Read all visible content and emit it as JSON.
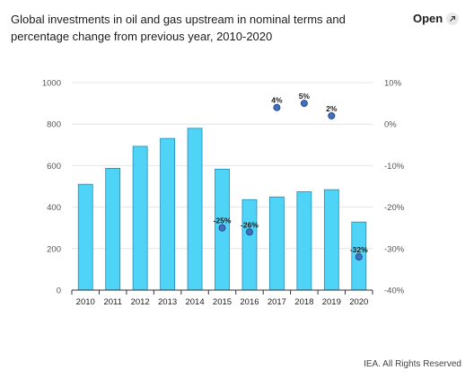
{
  "header": {
    "title": "Global investments in oil and gas upstream in nominal terms and percentage change from previous year, 2010-2020",
    "open_label": "Open",
    "open_icon": "external-link-icon"
  },
  "footer": {
    "credit": "IEA. All Rights Reserved"
  },
  "colors": {
    "bar": "#4fd3f7",
    "bar_stroke": "#1d8fb3",
    "dot": "#3f6fbf",
    "dot_stroke": "#1f3f7f",
    "grid": "#e4e4e4"
  },
  "chart_data": {
    "type": "bar",
    "categories": [
      "2010",
      "2011",
      "2012",
      "2013",
      "2014",
      "2015",
      "2016",
      "2017",
      "2018",
      "2019",
      "2020"
    ],
    "series": [
      {
        "axis": "left",
        "type": "bar",
        "values": [
          510,
          587,
          693,
          731,
          780,
          583,
          436,
          449,
          474,
          484,
          328
        ]
      },
      {
        "axis": "right",
        "type": "scatter",
        "values": [
          null,
          null,
          null,
          null,
          null,
          -25,
          -26,
          4,
          5,
          2,
          -32
        ],
        "labels": [
          "",
          "",
          "",
          "",
          "",
          "-25%",
          "-26%",
          "4%",
          "5%",
          "2%",
          "-32%"
        ]
      }
    ],
    "ylim_left": [
      0,
      1000
    ],
    "yticks_left": [
      0,
      200,
      400,
      600,
      800,
      1000
    ],
    "ytick_labels_left": [
      "0",
      "200",
      "400",
      "600",
      "800",
      "1000"
    ],
    "ylim_right": [
      -40,
      10
    ],
    "yticks_right": [
      -40,
      -30,
      -20,
      -10,
      0,
      10
    ],
    "ytick_labels_right": [
      "-40%",
      "-30%",
      "-20%",
      "-10%",
      "0%",
      "10%"
    ],
    "grid": true,
    "legend": "none"
  }
}
